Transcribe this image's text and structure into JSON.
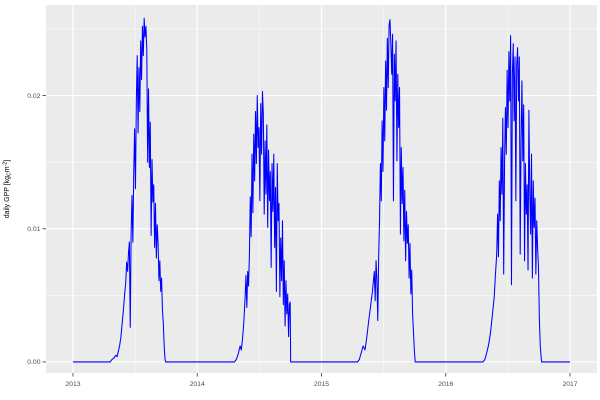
{
  "figure": {
    "y_axis_title": {
      "prefix": "daily GPP [kg",
      "sub": "C",
      "mid": "m",
      "sup": "-2",
      "suffix": "]"
    }
  },
  "chart_data": {
    "type": "line",
    "title": "",
    "xlabel": "",
    "ylabel": "daily GPP [kg_C m^-2]",
    "legend_position": "none",
    "grid": true,
    "x_ticks": [
      2013,
      2014,
      2015,
      2016,
      2017
    ],
    "x_tick_labels": [
      "2013",
      "2014",
      "2015",
      "2016",
      "2017"
    ],
    "x_minor_ticks": [
      2013.5,
      2014.5,
      2015.5,
      2016.5
    ],
    "y_ticks": [
      0,
      0.01,
      0.02
    ],
    "y_tick_labels": [
      "0.00",
      "0.01",
      "0.02"
    ],
    "y_minor_ticks": [
      0.005,
      0.015,
      0.025
    ],
    "xlim": [
      2012.783,
      2017.217
    ],
    "ylim": [
      -0.00083,
      0.0268
    ],
    "colors": {
      "line": "#0000FF",
      "panel_bg": "#EBEBEB",
      "grid_major": "#FFFFFF",
      "grid_minor": "#FFFFFF",
      "tick_text": "#4D4D4D",
      "axis_title": "#000000",
      "tick_mark": "#333333",
      "figure_bg": "#FFFFFF"
    },
    "series": [
      {
        "name": "daily GPP",
        "points": [
          [
            2013.0,
            0
          ],
          [
            2013.05,
            0
          ],
          [
            2013.1,
            0
          ],
          [
            2013.15,
            0
          ],
          [
            2013.2,
            0
          ],
          [
            2013.25,
            0
          ],
          [
            2013.3,
            0
          ],
          [
            2013.315,
            0.0002
          ],
          [
            2013.33,
            0.0003
          ],
          [
            2013.345,
            0.0005
          ],
          [
            2013.355,
            0.0004
          ],
          [
            2013.365,
            0.0008
          ],
          [
            2013.375,
            0.0012
          ],
          [
            2013.385,
            0.0018
          ],
          [
            2013.395,
            0.0028
          ],
          [
            2013.405,
            0.0038
          ],
          [
            2013.415,
            0.005
          ],
          [
            2013.425,
            0.006
          ],
          [
            2013.432,
            0.0075
          ],
          [
            2013.44,
            0.0068
          ],
          [
            2013.447,
            0.0082
          ],
          [
            2013.454,
            0.009
          ],
          [
            2013.461,
            0.0026
          ],
          [
            2013.468,
            0.0096
          ],
          [
            2013.475,
            0.0125
          ],
          [
            2013.482,
            0.009
          ],
          [
            2013.489,
            0.0142
          ],
          [
            2013.496,
            0.0175
          ],
          [
            2013.503,
            0.013
          ],
          [
            2013.51,
            0.0196
          ],
          [
            2013.517,
            0.023
          ],
          [
            2013.524,
            0.0172
          ],
          [
            2013.531,
            0.0221
          ],
          [
            2013.538,
            0.0188
          ],
          [
            2013.545,
            0.0241
          ],
          [
            2013.552,
            0.0212
          ],
          [
            2013.559,
            0.0252
          ],
          [
            2013.566,
            0.023
          ],
          [
            2013.573,
            0.0258
          ],
          [
            2013.58,
            0.0244
          ],
          [
            2013.587,
            0.0252
          ],
          [
            2013.594,
            0.0235
          ],
          [
            2013.601,
            0.015
          ],
          [
            2013.608,
            0.0205
          ],
          [
            2013.615,
            0.0146
          ],
          [
            2013.622,
            0.018
          ],
          [
            2013.629,
            0.0095
          ],
          [
            2013.636,
            0.0152
          ],
          [
            2013.643,
            0.012
          ],
          [
            2013.65,
            0.0133
          ],
          [
            2013.657,
            0.0086
          ],
          [
            2013.664,
            0.0119
          ],
          [
            2013.671,
            0.0078
          ],
          [
            2013.678,
            0.0103
          ],
          [
            2013.685,
            0.0089
          ],
          [
            2013.692,
            0.0061
          ],
          [
            2013.699,
            0.0076
          ],
          [
            2013.706,
            0.0053
          ],
          [
            2013.713,
            0.0063
          ],
          [
            2013.72,
            0.0039
          ],
          [
            2013.727,
            0.0029
          ],
          [
            2013.734,
            0.0012
          ],
          [
            2013.74,
            0.0003
          ],
          [
            2013.745,
            0
          ],
          [
            2013.8,
            0
          ],
          [
            2013.9,
            0
          ],
          [
            2014.0,
            0
          ],
          [
            2014.1,
            0
          ],
          [
            2014.2,
            0
          ],
          [
            2014.3,
            0
          ],
          [
            2014.315,
            0.0002
          ],
          [
            2014.33,
            0.0006
          ],
          [
            2014.345,
            0.0012
          ],
          [
            2014.355,
            0.0009
          ],
          [
            2014.365,
            0.0018
          ],
          [
            2014.375,
            0.003
          ],
          [
            2014.385,
            0.0048
          ],
          [
            2014.392,
            0.0065
          ],
          [
            2014.399,
            0.0041
          ],
          [
            2014.406,
            0.0068
          ],
          [
            2014.413,
            0.0057
          ],
          [
            2014.42,
            0.0081
          ],
          [
            2014.427,
            0.0124
          ],
          [
            2014.434,
            0.0094
          ],
          [
            2014.441,
            0.0156
          ],
          [
            2014.448,
            0.0112
          ],
          [
            2014.455,
            0.0171
          ],
          [
            2014.462,
            0.0136
          ],
          [
            2014.469,
            0.0188
          ],
          [
            2014.476,
            0.0149
          ],
          [
            2014.483,
            0.02
          ],
          [
            2014.49,
            0.0161
          ],
          [
            2014.497,
            0.0176
          ],
          [
            2014.504,
            0.0121
          ],
          [
            2014.511,
            0.0194
          ],
          [
            2014.518,
            0.0156
          ],
          [
            2014.525,
            0.0203
          ],
          [
            2014.532,
            0.0186
          ],
          [
            2014.539,
            0.0111
          ],
          [
            2014.546,
            0.0166
          ],
          [
            2014.553,
            0.0126
          ],
          [
            2014.56,
            0.0178
          ],
          [
            2014.567,
            0.0101
          ],
          [
            2014.574,
            0.0159
          ],
          [
            2014.581,
            0.0121
          ],
          [
            2014.588,
            0.0143
          ],
          [
            2014.595,
            0.0071
          ],
          [
            2014.602,
            0.0149
          ],
          [
            2014.609,
            0.0113
          ],
          [
            2014.616,
            0.0156
          ],
          [
            2014.623,
            0.0086
          ],
          [
            2014.63,
            0.0131
          ],
          [
            2014.637,
            0.0053
          ],
          [
            2014.644,
            0.0149
          ],
          [
            2014.651,
            0.0106
          ],
          [
            2014.658,
            0.0119
          ],
          [
            2014.665,
            0.0049
          ],
          [
            2014.672,
            0.0093
          ],
          [
            2014.679,
            0.0061
          ],
          [
            2014.686,
            0.0106
          ],
          [
            2014.693,
            0.0043
          ],
          [
            2014.7,
            0.0076
          ],
          [
            2014.707,
            0.0027
          ],
          [
            2014.714,
            0.0061
          ],
          [
            2014.721,
            0.0036
          ],
          [
            2014.728,
            0.0051
          ],
          [
            2014.735,
            0.0019
          ],
          [
            2014.742,
            0.0043
          ],
          [
            2014.748,
            0.0045
          ],
          [
            2014.752,
            0
          ],
          [
            2014.8,
            0
          ],
          [
            2014.9,
            0
          ],
          [
            2015.0,
            0
          ],
          [
            2015.1,
            0
          ],
          [
            2015.2,
            0
          ],
          [
            2015.29,
            0
          ],
          [
            2015.305,
            0.0002
          ],
          [
            2015.32,
            0.0007
          ],
          [
            2015.335,
            0.0012
          ],
          [
            2015.35,
            0.0009
          ],
          [
            2015.365,
            0.0019
          ],
          [
            2015.38,
            0.0031
          ],
          [
            2015.395,
            0.0042
          ],
          [
            2015.41,
            0.0053
          ],
          [
            2015.425,
            0.0068
          ],
          [
            2015.432,
            0.0046
          ],
          [
            2015.439,
            0.0076
          ],
          [
            2015.446,
            0.0061
          ],
          [
            2015.453,
            0.0031
          ],
          [
            2015.46,
            0.0079
          ],
          [
            2015.467,
            0.0106
          ],
          [
            2015.474,
            0.0149
          ],
          [
            2015.481,
            0.0121
          ],
          [
            2015.488,
            0.0181
          ],
          [
            2015.495,
            0.0143
          ],
          [
            2015.502,
            0.0206
          ],
          [
            2015.509,
            0.0166
          ],
          [
            2015.516,
            0.0226
          ],
          [
            2015.523,
            0.0189
          ],
          [
            2015.53,
            0.0243
          ],
          [
            2015.537,
            0.0206
          ],
          [
            2015.544,
            0.0253
          ],
          [
            2015.551,
            0.0257
          ],
          [
            2015.558,
            0.0239
          ],
          [
            2015.565,
            0.0216
          ],
          [
            2015.572,
            0.0246
          ],
          [
            2015.579,
            0.0121
          ],
          [
            2015.586,
            0.0231
          ],
          [
            2015.593,
            0.0196
          ],
          [
            2015.6,
            0.0241
          ],
          [
            2015.607,
            0.0151
          ],
          [
            2015.614,
            0.0216
          ],
          [
            2015.621,
            0.0176
          ],
          [
            2015.628,
            0.0206
          ],
          [
            2015.635,
            0.0096
          ],
          [
            2015.642,
            0.0161
          ],
          [
            2015.649,
            0.0119
          ],
          [
            2015.656,
            0.0146
          ],
          [
            2015.663,
            0.0091
          ],
          [
            2015.67,
            0.0129
          ],
          [
            2015.677,
            0.0076
          ],
          [
            2015.684,
            0.0113
          ],
          [
            2015.691,
            0.0089
          ],
          [
            2015.698,
            0.0103
          ],
          [
            2015.705,
            0.0063
          ],
          [
            2015.712,
            0.0089
          ],
          [
            2015.719,
            0.0051
          ],
          [
            2015.726,
            0.0069
          ],
          [
            2015.733,
            0.0036
          ],
          [
            2015.74,
            0.0023
          ],
          [
            2015.747,
            0.0009
          ],
          [
            2015.754,
            0
          ],
          [
            2015.8,
            0
          ],
          [
            2015.9,
            0
          ],
          [
            2016.0,
            0
          ],
          [
            2016.1,
            0
          ],
          [
            2016.2,
            0
          ],
          [
            2016.3,
            0
          ],
          [
            2016.315,
            0.0002
          ],
          [
            2016.33,
            0.0007
          ],
          [
            2016.345,
            0.0013
          ],
          [
            2016.36,
            0.0022
          ],
          [
            2016.375,
            0.0035
          ],
          [
            2016.39,
            0.0049
          ],
          [
            2016.4,
            0.0066
          ],
          [
            2016.41,
            0.0081
          ],
          [
            2016.417,
            0.0111
          ],
          [
            2016.424,
            0.0079
          ],
          [
            2016.431,
            0.0136
          ],
          [
            2016.438,
            0.0106
          ],
          [
            2016.445,
            0.0161
          ],
          [
            2016.452,
            0.0126
          ],
          [
            2016.459,
            0.0183
          ],
          [
            2016.466,
            0.0066
          ],
          [
            2016.473,
            0.0149
          ],
          [
            2016.48,
            0.0191
          ],
          [
            2016.487,
            0.0156
          ],
          [
            2016.494,
            0.0219
          ],
          [
            2016.501,
            0.0176
          ],
          [
            2016.508,
            0.0233
          ],
          [
            2016.515,
            0.0196
          ],
          [
            2016.522,
            0.0245
          ],
          [
            2016.529,
            0.0058
          ],
          [
            2016.536,
            0.0216
          ],
          [
            2016.543,
            0.0239
          ],
          [
            2016.55,
            0.0181
          ],
          [
            2016.557,
            0.0229
          ],
          [
            2016.564,
            0.0121
          ],
          [
            2016.571,
            0.0223
          ],
          [
            2016.578,
            0.0236
          ],
          [
            2016.585,
            0.0196
          ],
          [
            2016.592,
            0.0229
          ],
          [
            2016.599,
            0.0081
          ],
          [
            2016.606,
            0.0166
          ],
          [
            2016.613,
            0.0211
          ],
          [
            2016.62,
            0.0151
          ],
          [
            2016.627,
            0.0193
          ],
          [
            2016.634,
            0.0076
          ],
          [
            2016.641,
            0.0149
          ],
          [
            2016.648,
            0.0111
          ],
          [
            2016.655,
            0.0133
          ],
          [
            2016.662,
            0.0069
          ],
          [
            2016.669,
            0.0189
          ],
          [
            2016.676,
            0.0129
          ],
          [
            2016.683,
            0.0096
          ],
          [
            2016.69,
            0.0156
          ],
          [
            2016.697,
            0.0063
          ],
          [
            2016.704,
            0.0136
          ],
          [
            2016.711,
            0.0101
          ],
          [
            2016.718,
            0.0123
          ],
          [
            2016.725,
            0.0066
          ],
          [
            2016.732,
            0.0106
          ],
          [
            2016.739,
            0.0086
          ],
          [
            2016.746,
            0.0071
          ],
          [
            2016.753,
            0.0033
          ],
          [
            2016.76,
            0.0013
          ],
          [
            2016.767,
            0.0004
          ],
          [
            2016.772,
            0
          ],
          [
            2016.85,
            0
          ],
          [
            2016.95,
            0
          ],
          [
            2017.0,
            0
          ]
        ]
      }
    ]
  }
}
